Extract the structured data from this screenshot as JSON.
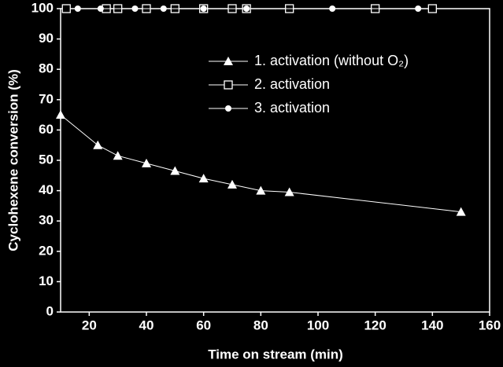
{
  "chart_data": {
    "type": "line",
    "xlabel": "Time on stream (min)",
    "ylabel": "Cyclohexene conversion (%)",
    "xlim": [
      10,
      160
    ],
    "xticks": [
      20,
      40,
      60,
      80,
      100,
      120,
      140,
      160
    ],
    "ylim": [
      0,
      100
    ],
    "yticks": [
      0,
      10,
      20,
      30,
      40,
      50,
      60,
      70,
      80,
      90,
      100
    ],
    "legend": "upper right",
    "series": [
      {
        "name": "1. activation (without O₂)",
        "color": "#ffffff",
        "marker": "triangle",
        "x": [
          10,
          23,
          30,
          40,
          50,
          60,
          70,
          80,
          90,
          150
        ],
        "values": [
          65,
          55,
          51.5,
          49,
          46.5,
          44,
          42,
          40,
          39.5,
          33
        ]
      },
      {
        "name": "2. activation",
        "color": "#ffffff",
        "marker": "square",
        "x": [
          12,
          26,
          30,
          40,
          50,
          60,
          70,
          75,
          90,
          120,
          140
        ],
        "values": [
          100,
          100,
          100,
          100,
          100,
          100,
          100,
          100,
          100,
          100,
          100
        ]
      },
      {
        "name": "3. activation",
        "color": "#ffffff",
        "marker": "circle",
        "x": [
          16,
          24,
          36,
          46,
          60,
          75,
          105,
          135
        ],
        "values": [
          100,
          100,
          100,
          100,
          100,
          100,
          100,
          100
        ]
      }
    ]
  }
}
